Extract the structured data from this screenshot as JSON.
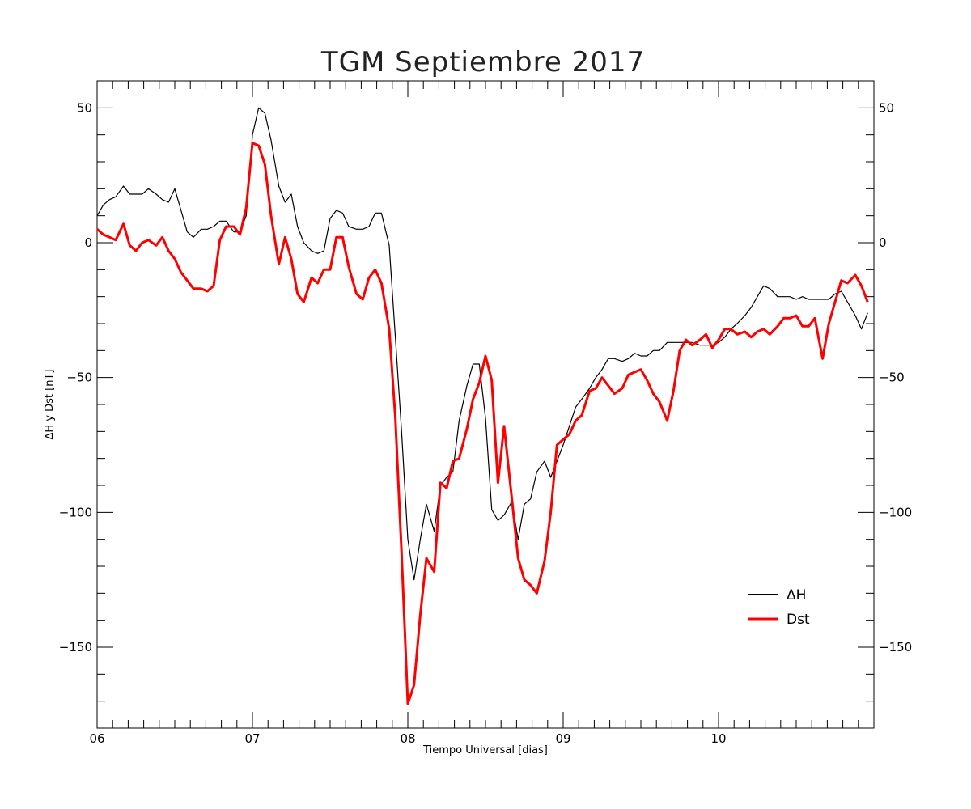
{
  "chart_data": {
    "type": "line",
    "title": "TGM Septiembre 2017",
    "xlabel": "Tiempo Universal [dias]",
    "ylabel": "ΔH y Dst [nT]",
    "xlim": [
      6,
      11
    ],
    "ylim": [
      -180,
      60
    ],
    "x_ticks": [
      6,
      7,
      8,
      9,
      10
    ],
    "x_tick_labels": [
      "06",
      "07",
      "08",
      "09",
      "10"
    ],
    "y_ticks": [
      50,
      0,
      -50,
      -100,
      -150
    ],
    "y_tick_labels": [
      "50",
      "0",
      "−50",
      "−100",
      "−150"
    ],
    "legend_position": "bottom-right",
    "grid": false,
    "series": [
      {
        "name": "ΔH",
        "color": "#000000",
        "x": [
          6.0,
          6.04,
          6.08,
          6.12,
          6.17,
          6.21,
          6.25,
          6.29,
          6.33,
          6.38,
          6.42,
          6.46,
          6.5,
          6.54,
          6.58,
          6.62,
          6.67,
          6.71,
          6.75,
          6.79,
          6.83,
          6.88,
          6.92,
          6.96,
          7.0,
          7.04,
          7.08,
          7.12,
          7.17,
          7.21,
          7.25,
          7.29,
          7.33,
          7.38,
          7.42,
          7.46,
          7.5,
          7.54,
          7.58,
          7.62,
          7.67,
          7.71,
          7.75,
          7.79,
          7.83,
          7.88,
          7.92,
          7.96,
          8.0,
          8.04,
          8.08,
          8.12,
          8.17,
          8.21,
          8.25,
          8.29,
          8.33,
          8.38,
          8.42,
          8.46,
          8.5,
          8.54,
          8.58,
          8.62,
          8.67,
          8.71,
          8.75,
          8.79,
          8.83,
          8.88,
          8.92,
          8.96,
          9.0,
          9.04,
          9.08,
          9.12,
          9.17,
          9.21,
          9.25,
          9.29,
          9.33,
          9.38,
          9.42,
          9.46,
          9.5,
          9.54,
          9.58,
          9.62,
          9.67,
          9.71,
          9.75,
          9.79,
          9.83,
          9.88,
          9.92,
          9.96,
          10.0,
          10.04,
          10.08,
          10.12,
          10.17,
          10.21,
          10.25,
          10.29,
          10.33,
          10.38,
          10.42,
          10.46,
          10.5,
          10.54,
          10.58,
          10.62,
          10.67,
          10.71,
          10.75,
          10.79,
          10.83,
          10.88,
          10.92,
          10.96
        ],
        "values": [
          10,
          14,
          16,
          17,
          21,
          18,
          18,
          18,
          20,
          18,
          16,
          15,
          20,
          12,
          4,
          2,
          5,
          5,
          6,
          8,
          8,
          4,
          4,
          10,
          40,
          50,
          48,
          38,
          21,
          15,
          18,
          6,
          0,
          -3,
          -4,
          -3,
          9,
          12,
          11,
          6,
          5,
          5,
          6,
          11,
          11,
          -1,
          -35,
          -70,
          -110,
          -125,
          -110,
          -97,
          -107,
          -90,
          -87,
          -85,
          -66,
          -53,
          -45,
          -45,
          -65,
          -99,
          -103,
          -101,
          -96,
          -110,
          -97,
          -95,
          -85,
          -81,
          -87,
          -81,
          -75,
          -68,
          -61,
          -58,
          -54,
          -50,
          -47,
          -43,
          -43,
          -44,
          -43,
          -41,
          -42,
          -42,
          -40,
          -40,
          -37,
          -37,
          -37,
          -37,
          -37,
          -38,
          -38,
          -38,
          -37,
          -35,
          -32,
          -30,
          -27,
          -24,
          -20,
          -16,
          -17,
          -20,
          -20,
          -20,
          -21,
          -20,
          -21,
          -21,
          -21,
          -21,
          -19,
          -18,
          -22,
          -27,
          -32,
          -26
        ]
      },
      {
        "name": "Dst",
        "color": "#ff0000",
        "x": [
          6.0,
          6.04,
          6.08,
          6.12,
          6.17,
          6.21,
          6.25,
          6.29,
          6.33,
          6.38,
          6.42,
          6.46,
          6.5,
          6.54,
          6.58,
          6.62,
          6.67,
          6.71,
          6.75,
          6.79,
          6.83,
          6.88,
          6.92,
          6.96,
          7.0,
          7.04,
          7.08,
          7.12,
          7.17,
          7.21,
          7.25,
          7.29,
          7.33,
          7.38,
          7.42,
          7.46,
          7.5,
          7.54,
          7.58,
          7.62,
          7.67,
          7.71,
          7.75,
          7.79,
          7.83,
          7.88,
          7.92,
          7.96,
          8.0,
          8.04,
          8.08,
          8.12,
          8.17,
          8.21,
          8.25,
          8.29,
          8.33,
          8.38,
          8.42,
          8.46,
          8.5,
          8.54,
          8.58,
          8.62,
          8.67,
          8.71,
          8.75,
          8.79,
          8.83,
          8.88,
          8.92,
          8.96,
          9.0,
          9.04,
          9.08,
          9.12,
          9.17,
          9.21,
          9.25,
          9.29,
          9.33,
          9.38,
          9.42,
          9.46,
          9.5,
          9.54,
          9.58,
          9.62,
          9.67,
          9.71,
          9.75,
          9.79,
          9.83,
          9.88,
          9.92,
          9.96,
          10.0,
          10.04,
          10.08,
          10.12,
          10.17,
          10.21,
          10.25,
          10.29,
          10.33,
          10.38,
          10.42,
          10.46,
          10.5,
          10.54,
          10.58,
          10.62,
          10.67,
          10.71,
          10.75,
          10.79,
          10.83,
          10.88,
          10.92,
          10.96
        ],
        "values": [
          5,
          3,
          2,
          1,
          7,
          -1,
          -3,
          0,
          1,
          -1,
          2,
          -3,
          -6,
          -11,
          -14,
          -17,
          -17,
          -18,
          -16,
          1,
          6,
          6,
          3,
          13,
          37,
          36,
          29,
          10,
          -8,
          2,
          -6,
          -19,
          -22,
          -13,
          -15,
          -10,
          -10,
          2,
          2,
          -9,
          -19,
          -21,
          -13,
          -10,
          -15,
          -32,
          -65,
          -115,
          -171,
          -164,
          -138,
          -117,
          -122,
          -89,
          -91,
          -81,
          -80,
          -69,
          -58,
          -52,
          -42,
          -51,
          -89,
          -68,
          -95,
          -117,
          -125,
          -127,
          -130,
          -118,
          -100,
          -75,
          -73,
          -71,
          -66,
          -64,
          -55,
          -54,
          -50,
          -53,
          -56,
          -54,
          -49,
          -48,
          -47,
          -51,
          -56,
          -59,
          -66,
          -55,
          -40,
          -36,
          -38,
          -36,
          -34,
          -39,
          -36,
          -32,
          -32,
          -34,
          -33,
          -35,
          -33,
          -32,
          -34,
          -31,
          -28,
          -28,
          -27,
          -31,
          -31,
          -28,
          -43,
          -30,
          -22,
          -14,
          -15,
          -12,
          -16,
          -22
        ]
      }
    ]
  }
}
